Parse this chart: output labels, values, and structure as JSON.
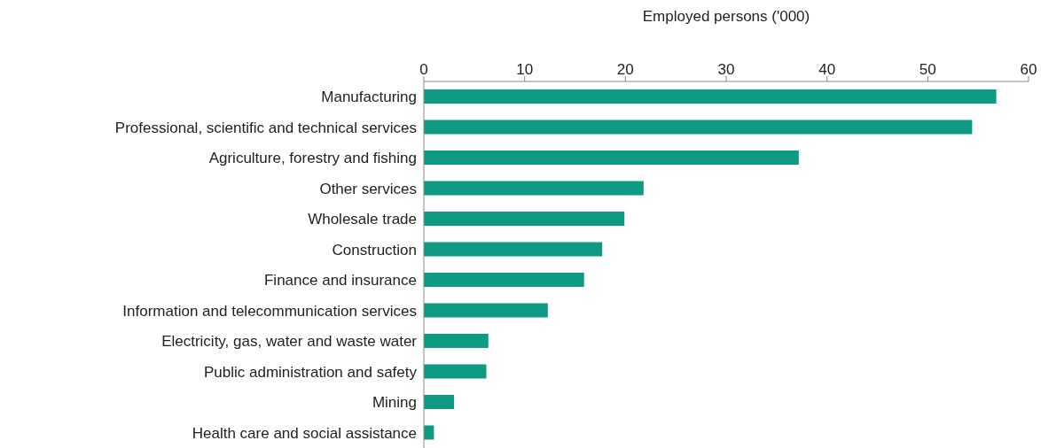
{
  "chart_data": {
    "type": "bar",
    "orientation": "horizontal",
    "xlabel": "Employed persons ('000)",
    "categories": [
      "Manufacturing",
      "Professional, scientific and technical services",
      "Agriculture, forestry and fishing",
      "Other services",
      "Wholesale trade",
      "Construction",
      "Finance and insurance",
      "Information and telecommunication services",
      "Electricity, gas, water and waste water",
      "Public administration and safety",
      "Mining",
      "Health care and social assistance"
    ],
    "values": [
      56.8,
      54.4,
      37.2,
      21.8,
      19.9,
      17.7,
      15.9,
      12.3,
      6.4,
      6.2,
      3.0,
      1.0
    ],
    "color": "#0e9a83",
    "xlim": [
      0,
      60
    ],
    "xticks": [
      0,
      10,
      20,
      30,
      40,
      50,
      60
    ],
    "grid": false
  }
}
